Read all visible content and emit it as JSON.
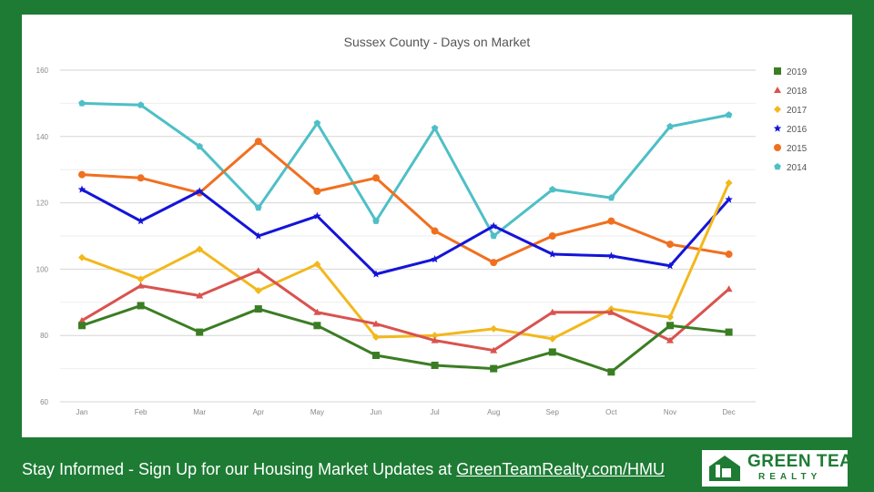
{
  "footer": {
    "prefix": "Stay Informed - Sign Up for our Housing Market Updates at ",
    "link": "GreenTeamRealty.com/HMU"
  },
  "logo": {
    "line1": "GREEN TEAM",
    "line2": "REALTY",
    "color": "#1e7b34"
  },
  "chart_data": {
    "type": "line",
    "title": "Sussex County - Days on Market",
    "xlabel": "",
    "ylabel": "",
    "categories": [
      "Jan",
      "Feb",
      "Mar",
      "Apr",
      "May",
      "Jun",
      "Jul",
      "Aug",
      "Sep",
      "Oct",
      "Nov",
      "Dec"
    ],
    "ylim": [
      60,
      160
    ],
    "yticks": [
      60,
      80,
      100,
      120,
      140,
      160
    ],
    "grid": true,
    "legend_position": "right",
    "series": [
      {
        "name": "2019",
        "color": "#3b7d23",
        "marker": "square",
        "values": [
          83,
          89,
          81,
          88,
          83,
          74,
          71,
          70,
          75,
          69,
          83,
          81
        ]
      },
      {
        "name": "2018",
        "color": "#d9534f",
        "marker": "triangle",
        "values": [
          84.5,
          95,
          92,
          99.5,
          87,
          83.5,
          78.5,
          75.5,
          87,
          87,
          78.5,
          94
        ]
      },
      {
        "name": "2017",
        "color": "#f2b81c",
        "marker": "diamond",
        "values": [
          103.5,
          97,
          106,
          93.5,
          101.5,
          79.5,
          80,
          82,
          79,
          88,
          85.5,
          126
        ]
      },
      {
        "name": "2016",
        "color": "#1414d9",
        "marker": "star",
        "values": [
          124,
          114.5,
          123.5,
          110,
          116,
          98.5,
          103,
          113,
          104.5,
          104,
          101,
          121
        ]
      },
      {
        "name": "2015",
        "color": "#f07020",
        "marker": "circle",
        "values": [
          128.5,
          127.5,
          123,
          138.5,
          123.5,
          127.5,
          111.5,
          102,
          110,
          114.5,
          107.5,
          104.5
        ]
      },
      {
        "name": "2014",
        "color": "#4ebfc6",
        "marker": "pentagon",
        "values": [
          150,
          149.5,
          137,
          118.5,
          144,
          114.5,
          142.5,
          110,
          124,
          121.5,
          143,
          146.5
        ]
      }
    ]
  }
}
